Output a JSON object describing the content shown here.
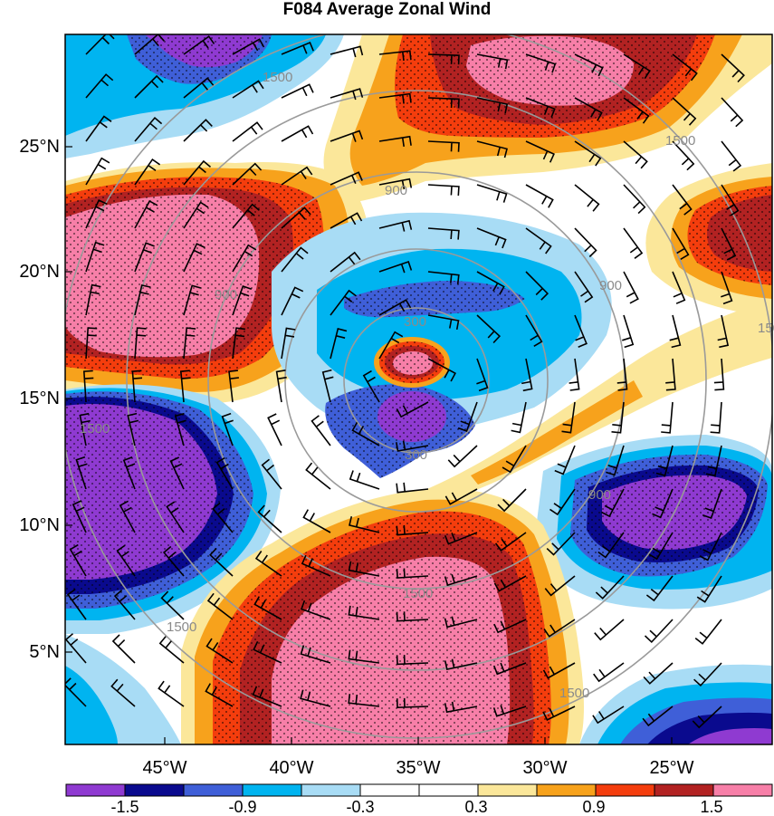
{
  "title": "F084 Average Zonal Wind",
  "lat_labels": [
    "25°N",
    "20°N",
    "15°N",
    "10°N",
    "5°N"
  ],
  "lon_labels": [
    "45°W",
    "40°W",
    "35°W",
    "30°W",
    "25°W"
  ],
  "colorbar": {
    "labels": [
      "-1.5",
      "-0.9",
      "-0.3",
      "0.3",
      "0.9",
      "1.5"
    ],
    "colors": [
      "#8f3ad1",
      "#0a0a8e",
      "#3f5fd8",
      "#00b4f0",
      "#a8dcf5",
      "#ffffff",
      "#ffffff",
      "#fbe79a",
      "#f7a21c",
      "#f43d0d",
      "#b22222",
      "#f77fa8"
    ]
  },
  "range_ring_labels": [
    "300",
    "300",
    "900",
    "900",
    "900",
    "900",
    "1500",
    "1500",
    "1500",
    "1500",
    "1500",
    "1500",
    "1500"
  ],
  "colors": {
    "strong_negative": "#8f3ad1",
    "dark_blue": "#0a0a8e",
    "mid_blue": "#3f5fd8",
    "cyan": "#00b4f0",
    "light_blue": "#a8dcf5",
    "light_yellow": "#fbe79a",
    "orange": "#f7a21c",
    "red_orange": "#f43d0d",
    "dark_red": "#b22222",
    "pink": "#f77fa8",
    "ring": "#9a9a9a"
  }
}
